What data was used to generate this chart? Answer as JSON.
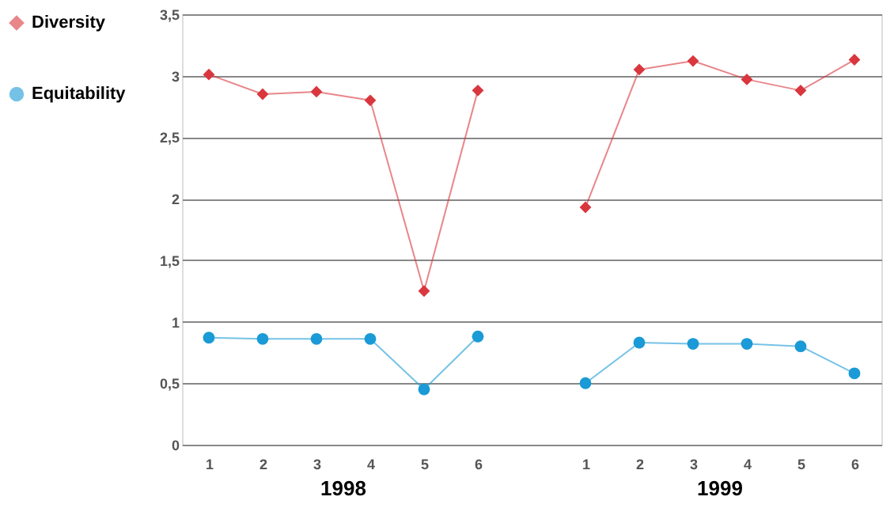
{
  "chart_data": {
    "type": "line",
    "categories": [
      "1",
      "2",
      "3",
      "4",
      "5",
      "6",
      null,
      "1",
      "2",
      "3",
      "4",
      "5",
      "6"
    ],
    "series": [
      {
        "name": "Diversity",
        "color": "#d9363e",
        "marker": "diamond",
        "values": [
          3.01,
          2.85,
          2.87,
          2.8,
          1.25,
          2.88,
          null,
          1.93,
          3.05,
          3.12,
          2.97,
          2.88,
          3.13
        ]
      },
      {
        "name": "Equitability",
        "color": "#1a9ad6",
        "marker": "circle",
        "values": [
          0.87,
          0.86,
          0.86,
          0.86,
          0.45,
          0.88,
          null,
          0.5,
          0.83,
          0.82,
          0.82,
          0.8,
          0.58
        ]
      }
    ],
    "annotations": [
      "1998",
      "1999"
    ],
    "ylim": [
      0,
      3.5
    ],
    "yticks": [
      0,
      {
        "value": 0.5,
        "label": "0,5"
      },
      1,
      {
        "value": 1.5,
        "label": "1,5"
      },
      2,
      {
        "value": 2.5,
        "label": "2,5"
      },
      3,
      {
        "value": 3.5,
        "label": "3,5"
      }
    ],
    "grid": "y",
    "legend": "left",
    "line_style": "solid"
  }
}
